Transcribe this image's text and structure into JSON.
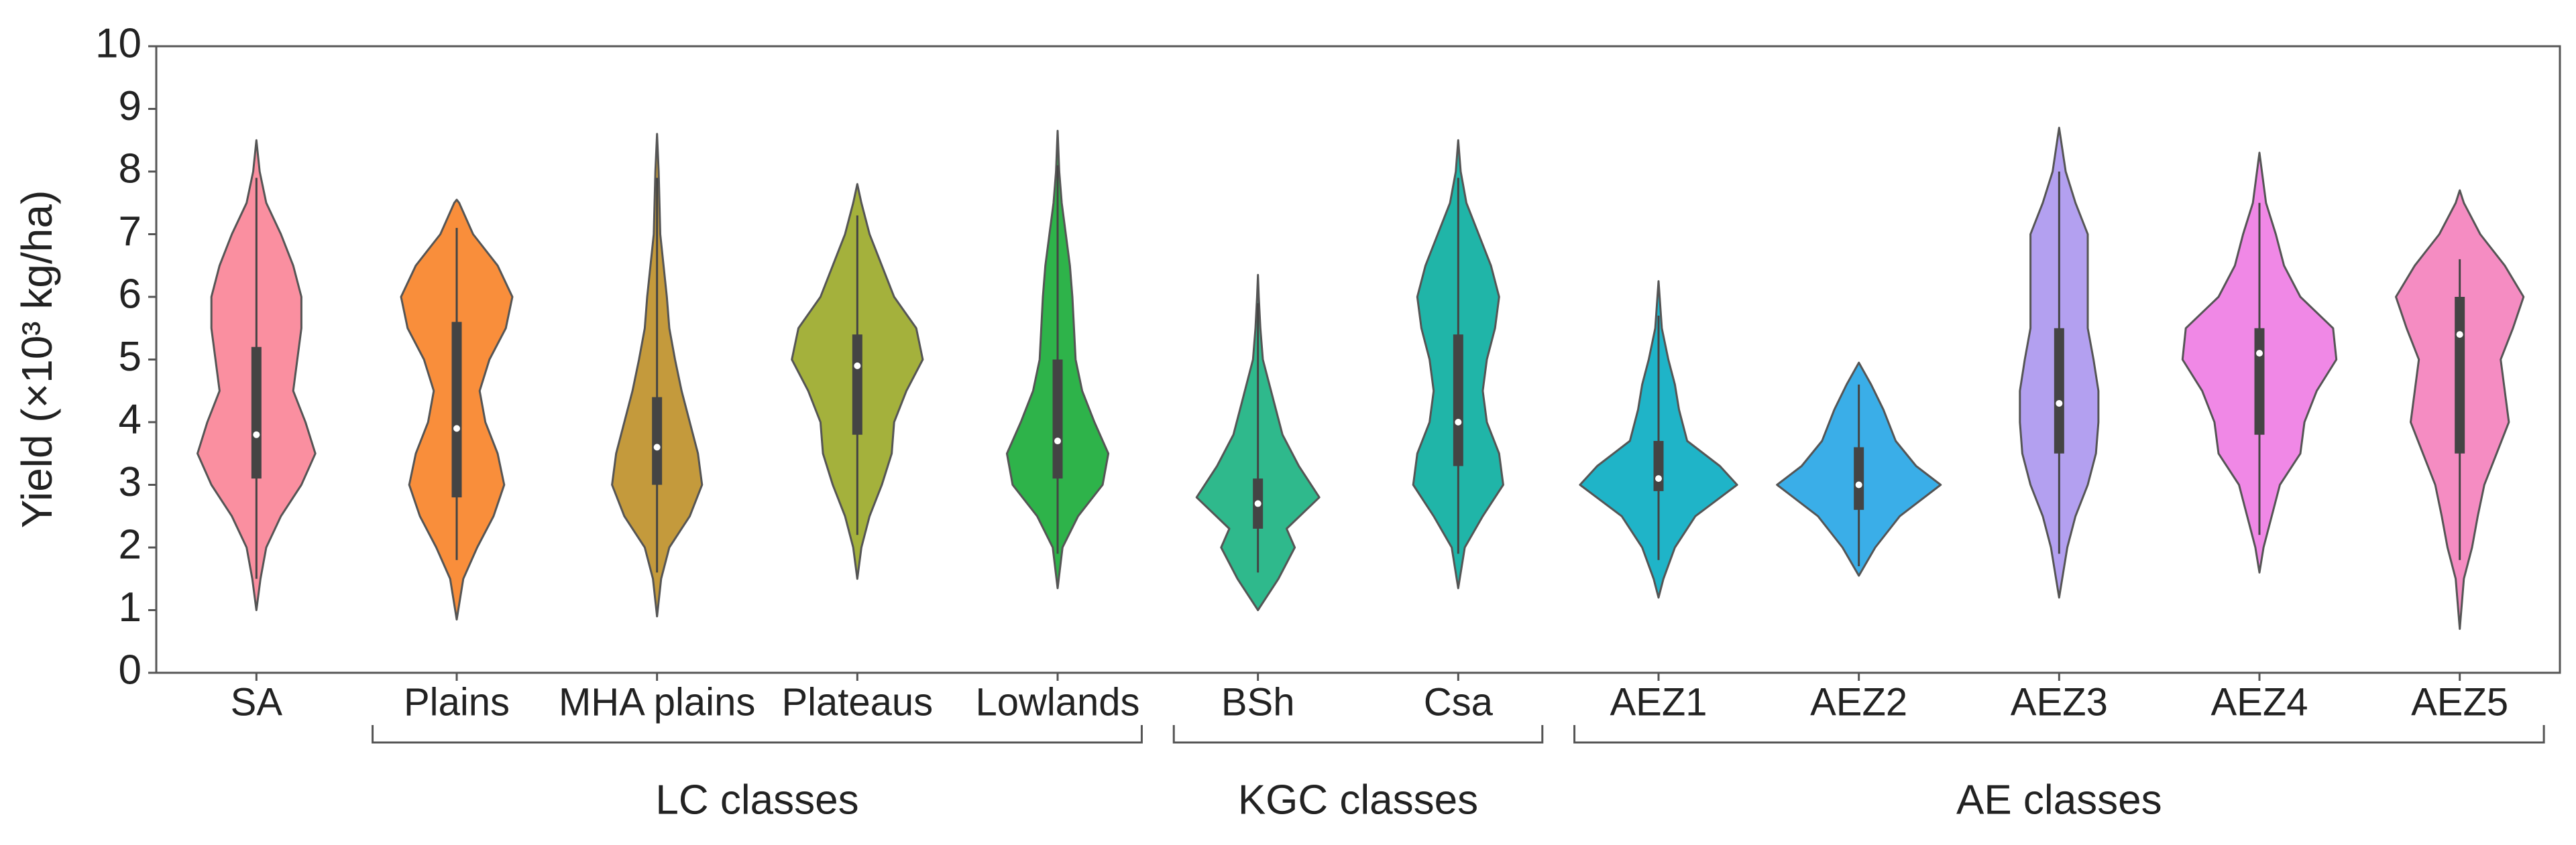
{
  "chart_data": {
    "type": "violin",
    "y_label": "Yield (×10³ kg/ha)",
    "ylim": [
      0,
      10
    ],
    "yticks": [
      0,
      1,
      2,
      3,
      4,
      5,
      6,
      7,
      8,
      9,
      10
    ],
    "categories": [
      "SA",
      "Plains",
      "MHA plains",
      "Plateaus",
      "Lowlands",
      "BSh",
      "Csa",
      "AEZ1",
      "AEZ2",
      "AEZ3",
      "AEZ4",
      "AEZ5"
    ],
    "groups": [
      {
        "label": "LC classes",
        "from": 1,
        "to": 4
      },
      {
        "label": "KGC classes",
        "from": 5,
        "to": 6
      },
      {
        "label": "AE classes",
        "from": 7,
        "to": 11
      }
    ],
    "violins": [
      {
        "color": "#fa8fa0",
        "q1": 3.1,
        "median": 3.8,
        "q3": 5.2,
        "whiskers": [
          1.5,
          7.9
        ],
        "density_y": [
          1.0,
          1.5,
          2,
          2.5,
          3,
          3.5,
          4,
          4.5,
          5,
          5.5,
          6,
          6.5,
          7,
          7.5,
          8,
          8.5
        ],
        "density": [
          0,
          0.05,
          0.12,
          0.3,
          0.55,
          0.72,
          0.6,
          0.45,
          0.5,
          0.55,
          0.55,
          0.45,
          0.3,
          0.12,
          0.04,
          0
        ]
      },
      {
        "color": "#f98e3b",
        "q1": 2.8,
        "median": 3.9,
        "q3": 5.6,
        "whiskers": [
          1.8,
          7.1
        ],
        "density_y": [
          0.85,
          1.5,
          2,
          2.5,
          3,
          3.5,
          4,
          4.5,
          5,
          5.5,
          6,
          6.5,
          7,
          7.5,
          7.55
        ],
        "density": [
          0,
          0.08,
          0.25,
          0.45,
          0.58,
          0.5,
          0.35,
          0.28,
          0.4,
          0.6,
          0.68,
          0.5,
          0.2,
          0.03,
          0
        ]
      },
      {
        "color": "#c49a3c",
        "q1": 3.0,
        "median": 3.6,
        "q3": 4.4,
        "whiskers": [
          1.6,
          7.9
        ],
        "density_y": [
          0.9,
          1.5,
          2,
          2.5,
          3,
          3.5,
          4,
          4.5,
          5,
          5.5,
          6,
          6.5,
          7,
          7.5,
          8,
          8.6
        ],
        "density": [
          0,
          0.05,
          0.15,
          0.4,
          0.55,
          0.5,
          0.4,
          0.3,
          0.22,
          0.15,
          0.12,
          0.08,
          0.04,
          0.03,
          0.02,
          0
        ]
      },
      {
        "color": "#a4b13c",
        "q1": 3.8,
        "median": 4.9,
        "q3": 5.4,
        "whiskers": [
          2.2,
          7.3
        ],
        "density_y": [
          1.5,
          2,
          2.5,
          3,
          3.5,
          4,
          4.5,
          5,
          5.5,
          6,
          6.5,
          7,
          7.5,
          7.8
        ],
        "density": [
          0,
          0.05,
          0.15,
          0.3,
          0.42,
          0.45,
          0.6,
          0.8,
          0.72,
          0.45,
          0.3,
          0.15,
          0.05,
          0
        ]
      },
      {
        "color": "#2eb34a",
        "q1": 3.1,
        "median": 3.7,
        "q3": 5.0,
        "whiskers": [
          1.9,
          8.1
        ],
        "density_y": [
          1.35,
          2,
          2.5,
          3,
          3.5,
          4,
          4.5,
          5,
          5.5,
          6,
          6.5,
          7,
          7.5,
          8,
          8.65
        ],
        "density": [
          0,
          0.06,
          0.25,
          0.55,
          0.62,
          0.45,
          0.3,
          0.22,
          0.2,
          0.18,
          0.15,
          0.1,
          0.05,
          0.02,
          0
        ]
      },
      {
        "color": "#2fb98c",
        "q1": 2.3,
        "median": 2.7,
        "q3": 3.1,
        "whiskers": [
          1.6,
          5.9
        ],
        "density_y": [
          1.0,
          1.5,
          2,
          2.3,
          2.8,
          3.3,
          3.8,
          4.3,
          5,
          5.5,
          6,
          6.35
        ],
        "density": [
          0,
          0.25,
          0.45,
          0.35,
          0.75,
          0.5,
          0.3,
          0.2,
          0.06,
          0.03,
          0.01,
          0
        ]
      },
      {
        "color": "#20b5a8",
        "q1": 3.3,
        "median": 4.0,
        "q3": 5.4,
        "whiskers": [
          1.9,
          7.9
        ],
        "density_y": [
          1.35,
          2,
          2.5,
          3,
          3.5,
          4,
          4.5,
          5,
          5.5,
          6,
          6.5,
          7,
          7.5,
          8,
          8.5
        ],
        "density": [
          0,
          0.08,
          0.3,
          0.55,
          0.5,
          0.35,
          0.3,
          0.35,
          0.45,
          0.5,
          0.4,
          0.25,
          0.1,
          0.03,
          0
        ]
      },
      {
        "color": "#1fb4c8",
        "q1": 2.9,
        "median": 3.1,
        "q3": 3.7,
        "whiskers": [
          1.8,
          5.7
        ],
        "density_y": [
          1.2,
          1.5,
          2,
          2.5,
          3,
          3.3,
          3.7,
          4.2,
          4.6,
          5,
          5.5,
          6.25
        ],
        "density": [
          0,
          0.06,
          0.2,
          0.45,
          0.96,
          0.75,
          0.35,
          0.25,
          0.2,
          0.12,
          0.04,
          0
        ]
      },
      {
        "color": "#3aaee8",
        "q1": 2.6,
        "median": 3.0,
        "q3": 3.6,
        "whiskers": [
          1.7,
          4.6
        ],
        "density_y": [
          1.55,
          2,
          2.5,
          3,
          3.3,
          3.7,
          4.2,
          4.6,
          4.95
        ],
        "density": [
          0,
          0.2,
          0.5,
          1.0,
          0.7,
          0.45,
          0.3,
          0.15,
          0
        ]
      },
      {
        "color": "#b3a0f0",
        "q1": 3.5,
        "median": 4.3,
        "q3": 5.5,
        "whiskers": [
          1.9,
          8.0
        ],
        "density_y": [
          1.2,
          2,
          2.5,
          3,
          3.5,
          4,
          4.5,
          5,
          5.5,
          6,
          6.5,
          7,
          7.5,
          8,
          8.7
        ],
        "density": [
          0,
          0.1,
          0.2,
          0.35,
          0.45,
          0.48,
          0.48,
          0.42,
          0.35,
          0.35,
          0.35,
          0.35,
          0.2,
          0.08,
          0
        ]
      },
      {
        "color": "#f088e6",
        "q1": 3.8,
        "median": 5.1,
        "q3": 5.5,
        "whiskers": [
          2.2,
          7.5
        ],
        "density_y": [
          1.6,
          2,
          2.5,
          3,
          3.5,
          4,
          4.5,
          5,
          5.5,
          6,
          6.5,
          7,
          7.5,
          8.3
        ],
        "density": [
          0,
          0.05,
          0.15,
          0.25,
          0.5,
          0.55,
          0.7,
          0.94,
          0.9,
          0.5,
          0.3,
          0.2,
          0.08,
          0
        ]
      },
      {
        "color": "#f58cc2",
        "q1": 3.5,
        "median": 5.4,
        "q3": 6.0,
        "whiskers": [
          1.8,
          6.6
        ],
        "density_y": [
          0.7,
          1.5,
          2,
          2.5,
          3,
          3.5,
          4,
          4.5,
          5,
          5.5,
          6,
          6.5,
          7,
          7.5,
          7.7
        ],
        "density": [
          0,
          0.05,
          0.15,
          0.22,
          0.3,
          0.45,
          0.6,
          0.55,
          0.5,
          0.65,
          0.78,
          0.55,
          0.25,
          0.05,
          0
        ]
      }
    ]
  }
}
